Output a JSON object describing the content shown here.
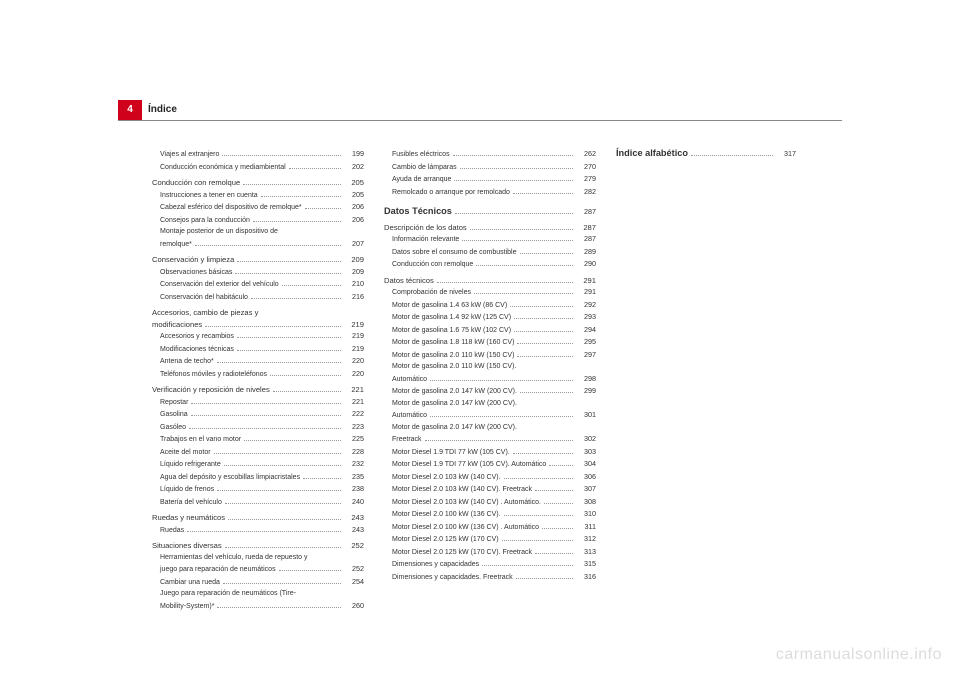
{
  "meta": {
    "page_number": "4",
    "header_title": "Índice",
    "watermark": "carmanualsonline.info",
    "colors": {
      "tab_bg": "#d0021b",
      "tab_fg": "#ffffff",
      "text": "#333333",
      "rule": "#888888",
      "watermark": "#dcdcdc",
      "page_bg": "#ffffff"
    }
  },
  "col1": [
    {
      "type": "sub",
      "label": "Viajes al extranjero",
      "page": "199"
    },
    {
      "type": "sub",
      "label": "Conducción económica y mediambiental",
      "page": "202"
    },
    {
      "type": "spacer"
    },
    {
      "type": "section",
      "label": "Conducción con remolque",
      "page": "205"
    },
    {
      "type": "sub",
      "label": "Instrucciones a tener en cuenta",
      "page": "205"
    },
    {
      "type": "sub",
      "label": "Cabezal esférico del dispositivo de remolque*",
      "page": "206"
    },
    {
      "type": "sub",
      "label": "Consejos para la conducción",
      "page": "206"
    },
    {
      "type": "sub",
      "label": "Montaje posterior de un dispositivo de",
      "page": ""
    },
    {
      "type": "sub",
      "label": "remolque*",
      "page": "207"
    },
    {
      "type": "spacer"
    },
    {
      "type": "section",
      "label": "Conservación y limpieza",
      "page": "209"
    },
    {
      "type": "sub",
      "label": "Observaciones básicas",
      "page": "209"
    },
    {
      "type": "sub",
      "label": "Conservación del exterior del vehículo",
      "page": "210"
    },
    {
      "type": "sub",
      "label": "Conservación del habitáculo",
      "page": "216"
    },
    {
      "type": "spacer"
    },
    {
      "type": "section",
      "label": "Accesorios, cambio de piezas y",
      "page": ""
    },
    {
      "type": "section",
      "label": "modificaciones",
      "page": "219"
    },
    {
      "type": "sub",
      "label": "Accesorios y recambios",
      "page": "219"
    },
    {
      "type": "sub",
      "label": "Modificaciones técnicas",
      "page": "219"
    },
    {
      "type": "sub",
      "label": "Antena de techo*",
      "page": "220"
    },
    {
      "type": "sub",
      "label": "Teléfonos móviles y radioteléfonos",
      "page": "220"
    },
    {
      "type": "spacer"
    },
    {
      "type": "section",
      "label": "Verificación y reposición de niveles",
      "page": "221"
    },
    {
      "type": "sub",
      "label": "Repostar",
      "page": "221"
    },
    {
      "type": "sub",
      "label": "Gasolina",
      "page": "222"
    },
    {
      "type": "sub",
      "label": "Gasóleo",
      "page": "223"
    },
    {
      "type": "sub",
      "label": "Trabajos en el vano motor",
      "page": "225"
    },
    {
      "type": "sub",
      "label": "Aceite del motor",
      "page": "228"
    },
    {
      "type": "sub",
      "label": "Líquido refrigerante",
      "page": "232"
    },
    {
      "type": "sub",
      "label": "Agua del depósito y escobillas limpiacristales",
      "page": "235"
    },
    {
      "type": "sub",
      "label": "Líquido de frenos",
      "page": "238"
    },
    {
      "type": "sub",
      "label": "Batería del vehículo",
      "page": "240"
    },
    {
      "type": "spacer"
    },
    {
      "type": "section",
      "label": "Ruedas y neumáticos",
      "page": "243"
    },
    {
      "type": "sub",
      "label": "Ruedas",
      "page": "243"
    },
    {
      "type": "spacer"
    },
    {
      "type": "section",
      "label": "Situaciones diversas",
      "page": "252"
    },
    {
      "type": "sub",
      "label": "Herramientas del vehículo, rueda de repuesto y",
      "page": ""
    },
    {
      "type": "sub",
      "label": "juego para reparación de neumáticos",
      "page": "252"
    },
    {
      "type": "sub",
      "label": "Cambiar una rueda",
      "page": "254"
    },
    {
      "type": "sub",
      "label": "Juego para reparación de neumáticos (Tire-",
      "page": ""
    },
    {
      "type": "sub",
      "label": "Mobility-System)*",
      "page": "260"
    }
  ],
  "col2": [
    {
      "type": "sub",
      "label": "Fusibles eléctricos",
      "page": "262"
    },
    {
      "type": "sub",
      "label": "Cambio de lámparas",
      "page": "270"
    },
    {
      "type": "sub",
      "label": "Ayuda de arranque",
      "page": "279"
    },
    {
      "type": "sub",
      "label": "Remolcado o arranque por remolcado",
      "page": "282"
    },
    {
      "type": "spacer"
    },
    {
      "type": "spacer"
    },
    {
      "type": "big",
      "label": "Datos Técnicos",
      "page": "287"
    },
    {
      "type": "spacer"
    },
    {
      "type": "section",
      "label": "Descripción de los datos",
      "page": "287"
    },
    {
      "type": "sub",
      "label": "Información relevante",
      "page": "287"
    },
    {
      "type": "sub",
      "label": "Datos sobre el consumo de combustible",
      "page": "289"
    },
    {
      "type": "sub",
      "label": "Conducción con remolque",
      "page": "290"
    },
    {
      "type": "spacer"
    },
    {
      "type": "section",
      "label": "Datos técnicos",
      "page": "291"
    },
    {
      "type": "sub",
      "label": "Comprobación de niveles",
      "page": "291"
    },
    {
      "type": "sub",
      "label": "Motor de gasolina 1.4 63 kW (86 CV)",
      "page": "292"
    },
    {
      "type": "sub",
      "label": "Motor de gasolina 1.4 92 kW (125 CV)",
      "page": "293"
    },
    {
      "type": "sub",
      "label": "Motor de gasolina 1.6 75 kW (102 CV)",
      "page": "294"
    },
    {
      "type": "sub",
      "label": "Motor de gasolina 1.8 118 kW (160 CV)",
      "page": "295"
    },
    {
      "type": "sub",
      "label": "Motor de gasolina 2.0 110 kW (150 CV)",
      "page": "297"
    },
    {
      "type": "sub",
      "label": "Motor de gasolina 2.0 110 kW (150 CV).",
      "page": ""
    },
    {
      "type": "sub",
      "label": "Automático",
      "page": "298"
    },
    {
      "type": "sub",
      "label": "Motor de gasolina 2.0 147 kW (200 CV).",
      "page": "299"
    },
    {
      "type": "sub",
      "label": "Motor de gasolina 2.0 147 kW (200 CV).",
      "page": ""
    },
    {
      "type": "sub",
      "label": "Automático",
      "page": "301"
    },
    {
      "type": "sub",
      "label": "Motor de gasolina 2.0 147 kW (200 CV).",
      "page": ""
    },
    {
      "type": "sub",
      "label": "Freetrack",
      "page": "302"
    },
    {
      "type": "sub",
      "label": "Motor Diesel 1.9 TDI 77 kW (105 CV).",
      "page": "303"
    },
    {
      "type": "sub",
      "label": "Motor Diesel 1.9 TDI 77 kW (105 CV). Automático",
      "page": "304"
    },
    {
      "type": "sub",
      "label": "Motor Diesel 2.0 103 kW (140 CV).",
      "page": "306"
    },
    {
      "type": "sub",
      "label": "Motor Diesel 2.0 103 kW (140 CV). Freetrack",
      "page": "307"
    },
    {
      "type": "sub",
      "label": "Motor Diesel 2.0 103 kW (140 CV) . Automático.",
      "page": "308"
    },
    {
      "type": "sub",
      "label": "Motor Diesel 2.0 100 kW (136 CV).",
      "page": "310"
    },
    {
      "type": "sub",
      "label": "Motor Diesel 2.0 100 kW (136 CV) . Automático",
      "page": "311"
    },
    {
      "type": "sub",
      "label": "Motor Diesel 2.0 125 kW (170 CV)",
      "page": "312"
    },
    {
      "type": "sub",
      "label": "Motor Diesel 2.0 125 kW (170 CV). Freetrack",
      "page": "313"
    },
    {
      "type": "sub",
      "label": "Dimensiones y capacidades",
      "page": "315"
    },
    {
      "type": "sub",
      "label": "Dimensiones y capacidades. Freetrack",
      "page": "316"
    }
  ],
  "col3": [
    {
      "type": "big",
      "label": "Índice alfabético",
      "page": "317"
    }
  ]
}
